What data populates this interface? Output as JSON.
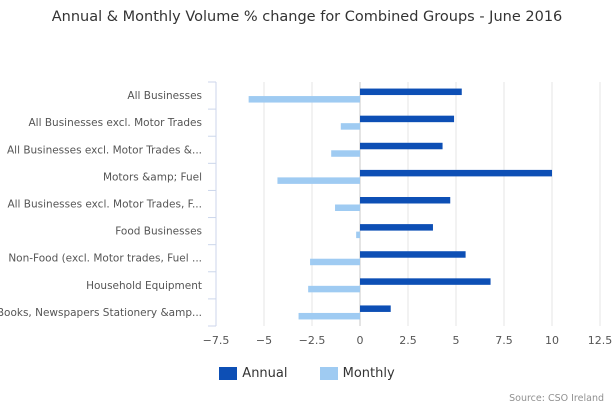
{
  "chart_data": {
    "type": "bar",
    "orientation": "horizontal",
    "title": "Annual & Monthly Volume % change for Combined Groups - June 2016",
    "categories": [
      "All Businesses",
      "All Businesses excl. Motor Trades",
      "All Businesses excl. Motor Trades &...",
      "Motors &amp; Fuel",
      "All Businesses excl. Motor Trades, F...",
      "Food Businesses",
      "Non-Food (excl. Motor trades, Fuel ...",
      "Household Equipment",
      "Books, Newspapers Stationery &amp..."
    ],
    "series": [
      {
        "name": "Annual",
        "color": "#0d4fb5",
        "values": [
          5.3,
          4.9,
          4.3,
          10.0,
          4.7,
          3.8,
          5.5,
          6.8,
          1.6
        ]
      },
      {
        "name": "Monthly",
        "color": "#9fcbf2",
        "values": [
          -5.8,
          -1.0,
          -1.5,
          -4.3,
          -1.3,
          -0.2,
          -2.6,
          -2.7,
          -3.2
        ]
      }
    ],
    "xlim": [
      -7.5,
      12.5
    ],
    "xticks": [
      "−7.5",
      "−5",
      "−2.5",
      "0",
      "2.5",
      "5",
      "7.5",
      "10",
      "12.5"
    ],
    "grid": true,
    "legend_position": "bottom-center"
  },
  "credits": "Source: CSO Ireland"
}
